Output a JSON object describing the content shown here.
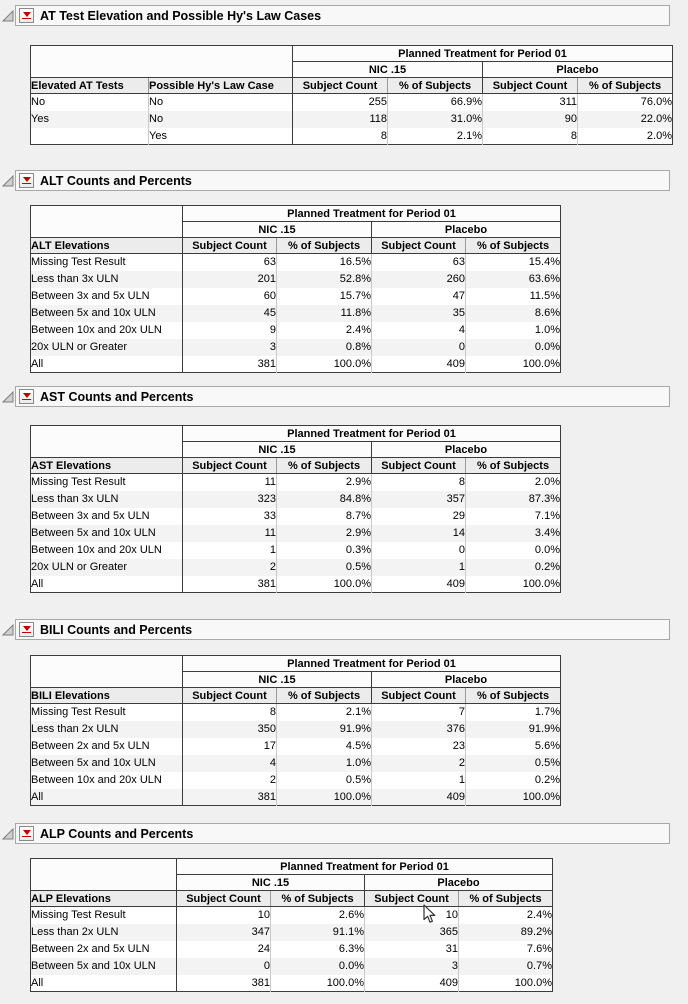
{
  "colors": {
    "red_triangle": "#c00000",
    "page_background": "#f0f0f0",
    "header_fill": "#ececec",
    "stripe_fill": "#f3f3f3"
  },
  "icons": {
    "disclosure": "disclosure-triangle-icon",
    "menu": "red-triangle-menu-icon",
    "pointer": "arrow-cursor"
  },
  "sections": [
    {
      "title": "AT Test Elevation and Possible Hy's Law Cases",
      "table": {
        "spanner": "Planned Treatment for Period 01",
        "groups": [
          "NIC .15",
          "Placebo"
        ],
        "label_headers": [
          "Elevated AT Tests",
          "Possible Hy's Law Case"
        ],
        "sub_headers": [
          "Subject Count",
          "% of Subjects",
          "Subject Count",
          "% of Subjects"
        ],
        "rows": [
          [
            "No",
            "No",
            "255",
            "66.9%",
            "311",
            "76.0%"
          ],
          [
            "Yes",
            "No",
            "118",
            "31.0%",
            "90",
            "22.0%"
          ],
          [
            "",
            "Yes",
            "8",
            "2.1%",
            "8",
            "2.0%"
          ]
        ]
      }
    },
    {
      "title": "ALT Counts and Percents",
      "table": {
        "spanner": "Planned Treatment for Period 01",
        "groups": [
          "NIC .15",
          "Placebo"
        ],
        "label_headers": [
          "ALT Elevations"
        ],
        "sub_headers": [
          "Subject Count",
          "% of Subjects",
          "Subject Count",
          "% of Subjects"
        ],
        "rows": [
          [
            "Missing Test Result",
            "63",
            "16.5%",
            "63",
            "15.4%"
          ],
          [
            "Less than 3x ULN",
            "201",
            "52.8%",
            "260",
            "63.6%"
          ],
          [
            "Between 3x and 5x ULN",
            "60",
            "15.7%",
            "47",
            "11.5%"
          ],
          [
            "Between 5x and 10x ULN",
            "45",
            "11.8%",
            "35",
            "8.6%"
          ],
          [
            "Between 10x and 20x ULN",
            "9",
            "2.4%",
            "4",
            "1.0%"
          ],
          [
            "20x ULN or Greater",
            "3",
            "0.8%",
            "0",
            "0.0%"
          ],
          [
            "All",
            "381",
            "100.0%",
            "409",
            "100.0%"
          ]
        ]
      }
    },
    {
      "title": "AST Counts and Percents",
      "table": {
        "spanner": "Planned Treatment for Period 01",
        "groups": [
          "NIC .15",
          "Placebo"
        ],
        "label_headers": [
          "AST Elevations"
        ],
        "sub_headers": [
          "Subject Count",
          "% of Subjects",
          "Subject Count",
          "% of Subjects"
        ],
        "rows": [
          [
            "Missing Test Result",
            "11",
            "2.9%",
            "8",
            "2.0%"
          ],
          [
            "Less than 3x ULN",
            "323",
            "84.8%",
            "357",
            "87.3%"
          ],
          [
            "Between 3x and 5x ULN",
            "33",
            "8.7%",
            "29",
            "7.1%"
          ],
          [
            "Between 5x and 10x ULN",
            "11",
            "2.9%",
            "14",
            "3.4%"
          ],
          [
            "Between 10x and 20x ULN",
            "1",
            "0.3%",
            "0",
            "0.0%"
          ],
          [
            "20x ULN or Greater",
            "2",
            "0.5%",
            "1",
            "0.2%"
          ],
          [
            "All",
            "381",
            "100.0%",
            "409",
            "100.0%"
          ]
        ]
      }
    },
    {
      "title": "BILI Counts and Percents",
      "table": {
        "spanner": "Planned Treatment for Period 01",
        "groups": [
          "NIC .15",
          "Placebo"
        ],
        "label_headers": [
          "BILI Elevations"
        ],
        "sub_headers": [
          "Subject Count",
          "% of Subjects",
          "Subject Count",
          "% of Subjects"
        ],
        "rows": [
          [
            "Missing Test Result",
            "8",
            "2.1%",
            "7",
            "1.7%"
          ],
          [
            "Less than 2x ULN",
            "350",
            "91.9%",
            "376",
            "91.9%"
          ],
          [
            "Between 2x and 5x ULN",
            "17",
            "4.5%",
            "23",
            "5.6%"
          ],
          [
            "Between 5x and 10x ULN",
            "4",
            "1.0%",
            "2",
            "0.5%"
          ],
          [
            "Between 10x and 20x ULN",
            "2",
            "0.5%",
            "1",
            "0.2%"
          ],
          [
            "All",
            "381",
            "100.0%",
            "409",
            "100.0%"
          ]
        ]
      }
    },
    {
      "title": "ALP Counts and Percents",
      "table": {
        "spanner": "Planned Treatment for Period 01",
        "groups": [
          "NIC .15",
          "Placebo"
        ],
        "label_headers": [
          "ALP Elevations"
        ],
        "sub_headers": [
          "Subject Count",
          "% of Subjects",
          "Subject Count",
          "% of Subjects"
        ],
        "rows": [
          [
            "Missing Test Result",
            "10",
            "2.6%",
            "10",
            "2.4%"
          ],
          [
            "Less than 2x ULN",
            "347",
            "91.1%",
            "365",
            "89.2%"
          ],
          [
            "Between 2x and 5x ULN",
            "24",
            "6.3%",
            "31",
            "7.6%"
          ],
          [
            "Between 5x and 10x ULN",
            "0",
            "0.0%",
            "3",
            "0.7%"
          ],
          [
            "All",
            "381",
            "100.0%",
            "409",
            "100.0%"
          ]
        ]
      }
    }
  ]
}
